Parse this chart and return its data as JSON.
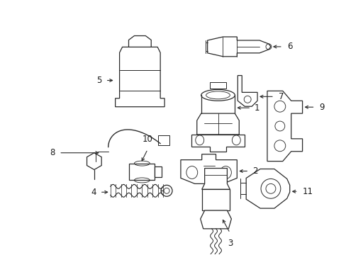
{
  "background_color": "#ffffff",
  "figure_width": 4.89,
  "figure_height": 3.6,
  "dpi": 100,
  "line_color": "#2a2a2a",
  "text_color": "#1a1a1a",
  "label_fontsize": 8.5
}
